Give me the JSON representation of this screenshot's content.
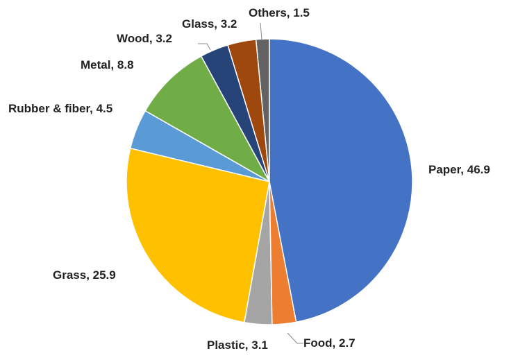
{
  "chart_data": {
    "type": "pie",
    "categories": [
      "Paper",
      "Food",
      "Plastic",
      "Grass",
      "Rubber & fiber",
      "Metal",
      "Wood",
      "Glass",
      "Others"
    ],
    "values": [
      46.9,
      2.7,
      3.1,
      25.9,
      4.5,
      8.8,
      3.2,
      3.2,
      1.5
    ],
    "value_labels": [
      "Paper, 46.9",
      "Food, 2.7",
      "Plastic, 3.1",
      "Grass, 25.9",
      "Rubber & fiber, 4.5",
      "Metal, 8.8",
      "Wood, 3.2",
      "Glass, 3.2",
      "Others, 1.5"
    ],
    "colors": [
      "#4472c4",
      "#ed7d31",
      "#a5a5a5",
      "#ffc000",
      "#5b9bd5",
      "#70ad47",
      "#264478",
      "#9e480e",
      "#636363"
    ]
  }
}
